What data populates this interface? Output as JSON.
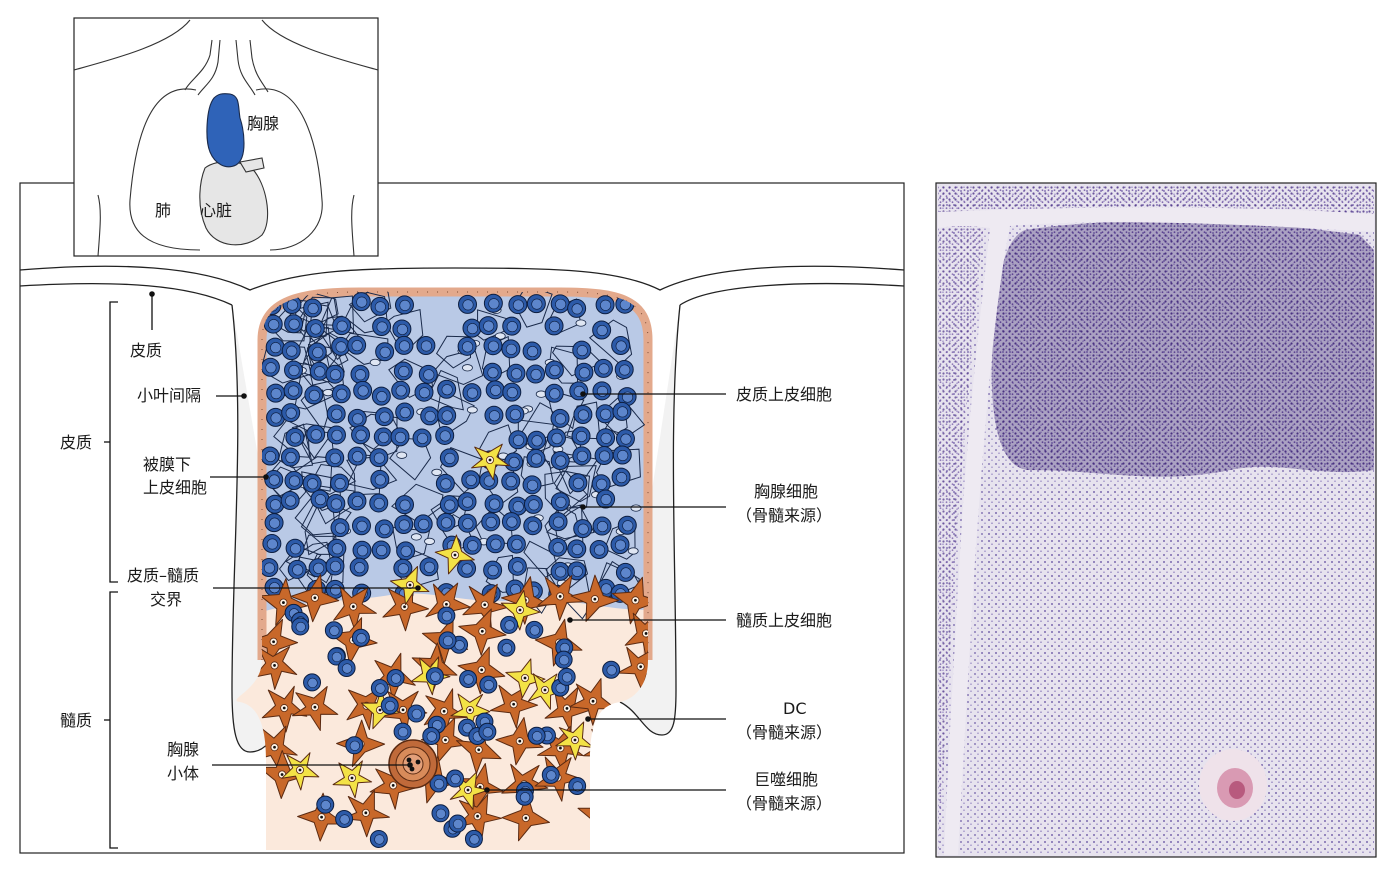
{
  "inset": {
    "thymus_label": "胸腺",
    "lung_label": "肺",
    "heart_label": "心脏"
  },
  "left_labels": {
    "cortex_region": "皮质",
    "medulla_region": "髓质",
    "cortex": "皮质",
    "interlobular_septum": "小叶间隔",
    "subcapsular_epithelial_line1": "被膜下",
    "subcapsular_epithelial_line2": "上皮细胞",
    "corticomedullary_line1": "皮质–髓质",
    "corticomedullary_line2": "交界",
    "hassall_line1": "胸腺",
    "hassall_line2": "小体"
  },
  "right_labels": {
    "cortical_epithelial": "皮质上皮细胞",
    "thymocyte_line1": "胸腺细胞",
    "thymocyte_line2": "（骨髓来源）",
    "medullary_epithelial": "髓质上皮细胞",
    "dc_line1": "DC",
    "dc_line2": "（骨髓来源）",
    "macrophage_line1": "巨噬细胞",
    "macrophage_line2": "（骨髓来源）"
  },
  "colors": {
    "thymus_blue": "#2f63b8",
    "thymocyte_blue": "#2c5aa8",
    "cortex_fill": "#b9c9e6",
    "medulla_fill": "#fbe9dc",
    "epithelial_orange": "#c8682a",
    "yellow_cell": "#f3e246",
    "capsule_cell": "#e8b9a0",
    "septum_fill": "#f2f2f2",
    "histology_purple": "#5a3f8f"
  }
}
